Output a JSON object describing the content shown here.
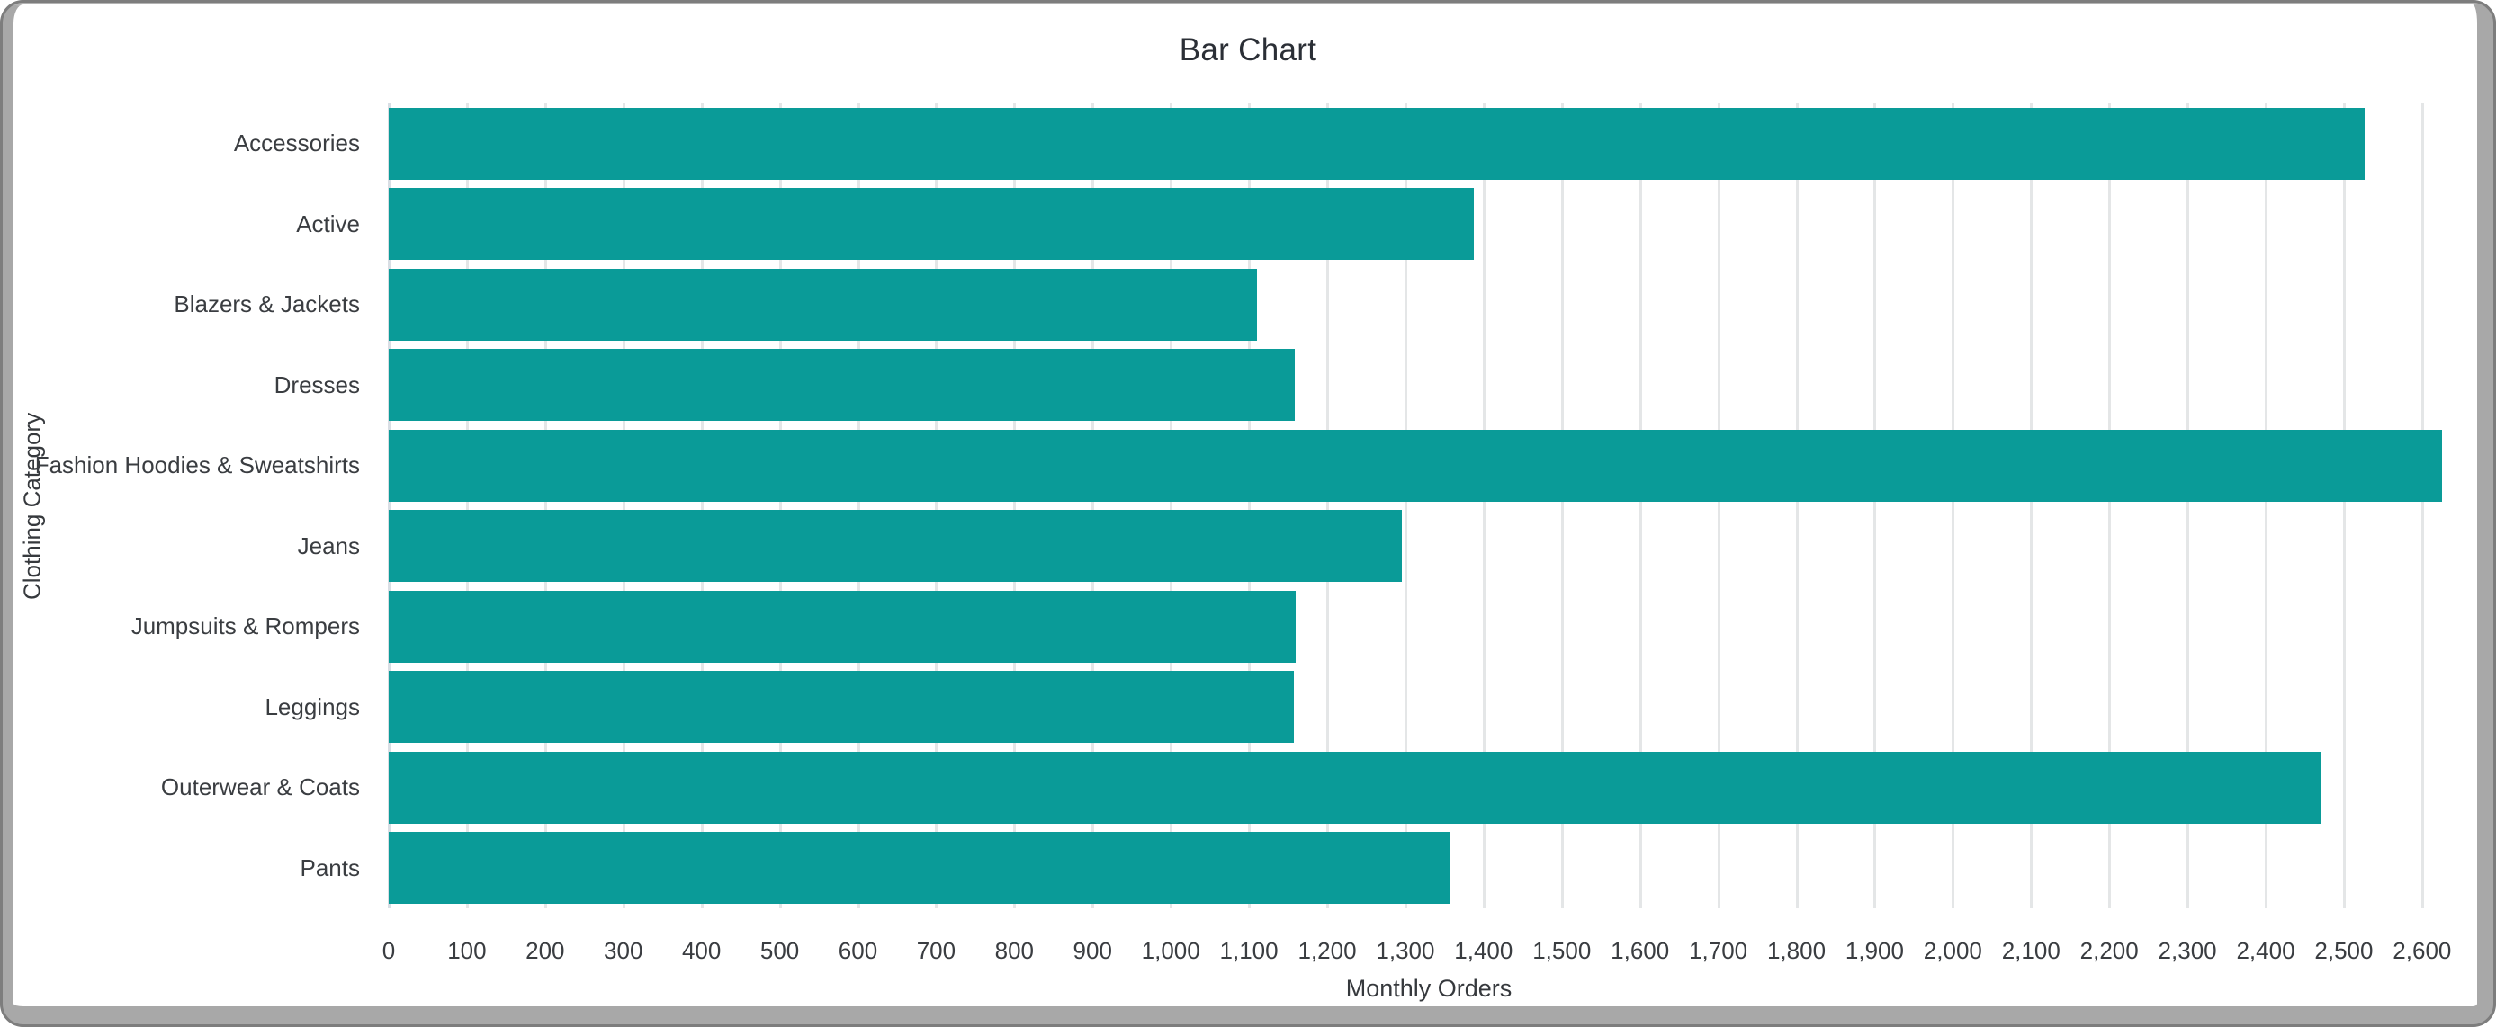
{
  "window": {
    "frame_color": "#a8a8a8",
    "frame_outline_color": "#7d7d7d",
    "background_color": "#ffffff"
  },
  "chart_data": {
    "type": "bar",
    "orientation": "horizontal",
    "title": "Bar Chart",
    "xlabel": "Monthly Orders",
    "ylabel": "Clothing Category",
    "categories": [
      "Accessories",
      "Active",
      "Blazers & Jackets",
      "Dresses",
      "Fashion Hoodies & Sweatshirts",
      "Jeans",
      "Jumpsuits & Rompers",
      "Leggings",
      "Outerwear & Coats",
      "Pants"
    ],
    "values": [
      2527,
      1387,
      1110,
      1159,
      2626,
      1296,
      1160,
      1157,
      2470,
      1356
    ],
    "xlim": [
      0,
      2660
    ],
    "tick_step": 100,
    "xticks": [
      "0",
      "100",
      "200",
      "300",
      "400",
      "500",
      "600",
      "700",
      "800",
      "900",
      "1,000",
      "1,100",
      "1,200",
      "1,300",
      "1,400",
      "1,500",
      "1,600",
      "1,700",
      "1,800",
      "1,900",
      "2,000",
      "2,100",
      "2,200",
      "2,300",
      "2,400",
      "2,500",
      "2,600"
    ],
    "grid": true,
    "legend_position": "none",
    "bar_color": "#0a9b98",
    "gridline_color": "#e4e6e7",
    "title_color": "#2b2f36",
    "label_color": "#3a3d41"
  }
}
